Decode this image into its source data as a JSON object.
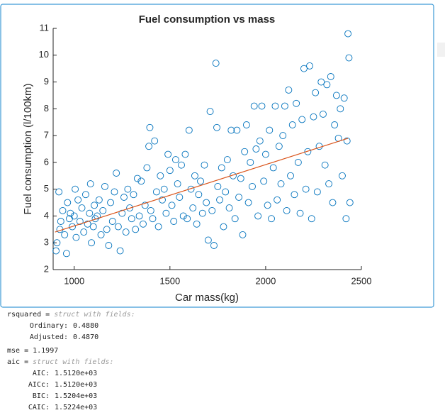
{
  "chart_data": {
    "type": "scatter",
    "title": "Fuel consumption vs mass",
    "xlabel": "Car mass(kg)",
    "ylabel": "Fuel consumption (l/100km)",
    "xlim": [
      890,
      2500
    ],
    "xticks": [
      1000,
      1500,
      2000,
      2500
    ],
    "ylim": [
      2,
      11
    ],
    "yticks": [
      2,
      3,
      4,
      5,
      6,
      7,
      8,
      9,
      10,
      11
    ],
    "series": [
      {
        "color": "#0072bd",
        "x": [
          905,
          910,
          920,
          925,
          930,
          940,
          950,
          960,
          965,
          975,
          980,
          990,
          1000,
          1005,
          1010,
          1020,
          1030,
          1040,
          1050,
          1060,
          1070,
          1080,
          1085,
          1090,
          1100,
          1105,
          1110,
          1120,
          1130,
          1140,
          1150,
          1160,
          1170,
          1180,
          1190,
          1200,
          1210,
          1220,
          1230,
          1240,
          1250,
          1260,
          1270,
          1280,
          1290,
          1300,
          1310,
          1320,
          1330,
          1340,
          1350,
          1360,
          1370,
          1380,
          1390,
          1395,
          1400,
          1410,
          1420,
          1430,
          1440,
          1450,
          1460,
          1470,
          1480,
          1490,
          1500,
          1510,
          1520,
          1530,
          1540,
          1550,
          1560,
          1570,
          1580,
          1590,
          1600,
          1610,
          1620,
          1630,
          1640,
          1650,
          1660,
          1670,
          1680,
          1690,
          1700,
          1710,
          1720,
          1730,
          1740,
          1745,
          1750,
          1760,
          1770,
          1780,
          1790,
          1800,
          1810,
          1820,
          1830,
          1840,
          1850,
          1860,
          1870,
          1880,
          1890,
          1900,
          1910,
          1920,
          1930,
          1940,
          1950,
          1960,
          1970,
          1980,
          1990,
          2000,
          2010,
          2020,
          2030,
          2040,
          2050,
          2060,
          2070,
          2080,
          2090,
          2100,
          2110,
          2120,
          2130,
          2140,
          2150,
          2160,
          2170,
          2180,
          2190,
          2200,
          2210,
          2220,
          2230,
          2240,
          2250,
          2260,
          2270,
          2280,
          2290,
          2300,
          2310,
          2320,
          2330,
          2340,
          2350,
          2360,
          2370,
          2380,
          2390,
          2400,
          2410,
          2420,
          2425,
          2430,
          2435,
          2440
        ],
        "values": [
          2.7,
          3.0,
          4.9,
          3.5,
          3.8,
          4.2,
          3.3,
          2.6,
          4.5,
          3.9,
          4.1,
          3.6,
          4.0,
          5.0,
          3.2,
          4.6,
          3.8,
          4.3,
          3.4,
          4.8,
          3.7,
          4.1,
          5.2,
          3.0,
          3.6,
          4.4,
          3.9,
          4.0,
          4.6,
          3.3,
          4.2,
          5.1,
          3.5,
          2.9,
          4.5,
          3.8,
          4.9,
          5.6,
          3.6,
          2.7,
          4.1,
          4.7,
          3.4,
          5.0,
          4.3,
          3.9,
          4.8,
          3.5,
          5.4,
          4.0,
          5.3,
          3.7,
          4.4,
          5.8,
          6.6,
          7.3,
          4.2,
          3.9,
          6.8,
          4.9,
          3.6,
          5.5,
          4.6,
          5.0,
          4.1,
          6.3,
          5.7,
          4.4,
          3.8,
          6.1,
          5.2,
          4.7,
          5.9,
          4.0,
          6.3,
          3.9,
          7.2,
          5.0,
          4.3,
          5.5,
          3.7,
          4.8,
          5.3,
          4.1,
          5.9,
          4.5,
          3.1,
          7.9,
          4.2,
          2.9,
          9.7,
          7.3,
          5.1,
          4.6,
          5.8,
          3.6,
          4.9,
          6.1,
          4.3,
          7.2,
          5.5,
          3.9,
          7.2,
          4.7,
          5.4,
          3.3,
          6.4,
          7.4,
          4.5,
          6.0,
          5.1,
          8.1,
          6.5,
          4.0,
          6.8,
          8.1,
          5.3,
          6.3,
          4.4,
          7.2,
          3.9,
          5.8,
          8.1,
          4.6,
          6.6,
          5.2,
          7.0,
          8.1,
          4.2,
          8.7,
          5.5,
          7.4,
          4.8,
          8.2,
          6.0,
          4.1,
          7.6,
          9.5,
          5.0,
          6.4,
          9.6,
          3.9,
          7.7,
          8.6,
          4.9,
          6.6,
          9.0,
          7.8,
          5.9,
          8.9,
          5.2,
          9.2,
          4.5,
          7.4,
          8.5,
          6.9,
          8.0,
          5.5,
          8.4,
          3.9,
          6.8,
          10.8,
          9.9,
          4.5
        ]
      }
    ],
    "fit": {
      "color": "#d95319",
      "x": [
        900,
        2430
      ],
      "values": [
        3.4,
        6.9
      ]
    }
  },
  "output": [
    {
      "label": "rsquared =",
      "note": "struct with fields:"
    },
    {
      "key": "Ordinary:",
      "value": "0.4880"
    },
    {
      "key": "Adjusted:",
      "value": "0.4870"
    },
    {
      "label": "mse = 1.1997"
    },
    {
      "label": "aic =",
      "note": "struct with fields:"
    },
    {
      "key": "AIC:",
      "value": "1.5120e+03"
    },
    {
      "key": "AICc:",
      "value": "1.5120e+03"
    },
    {
      "key": "BIC:",
      "value": "1.5204e+03"
    },
    {
      "key": "CAIC:",
      "value": "1.5224e+03"
    }
  ]
}
